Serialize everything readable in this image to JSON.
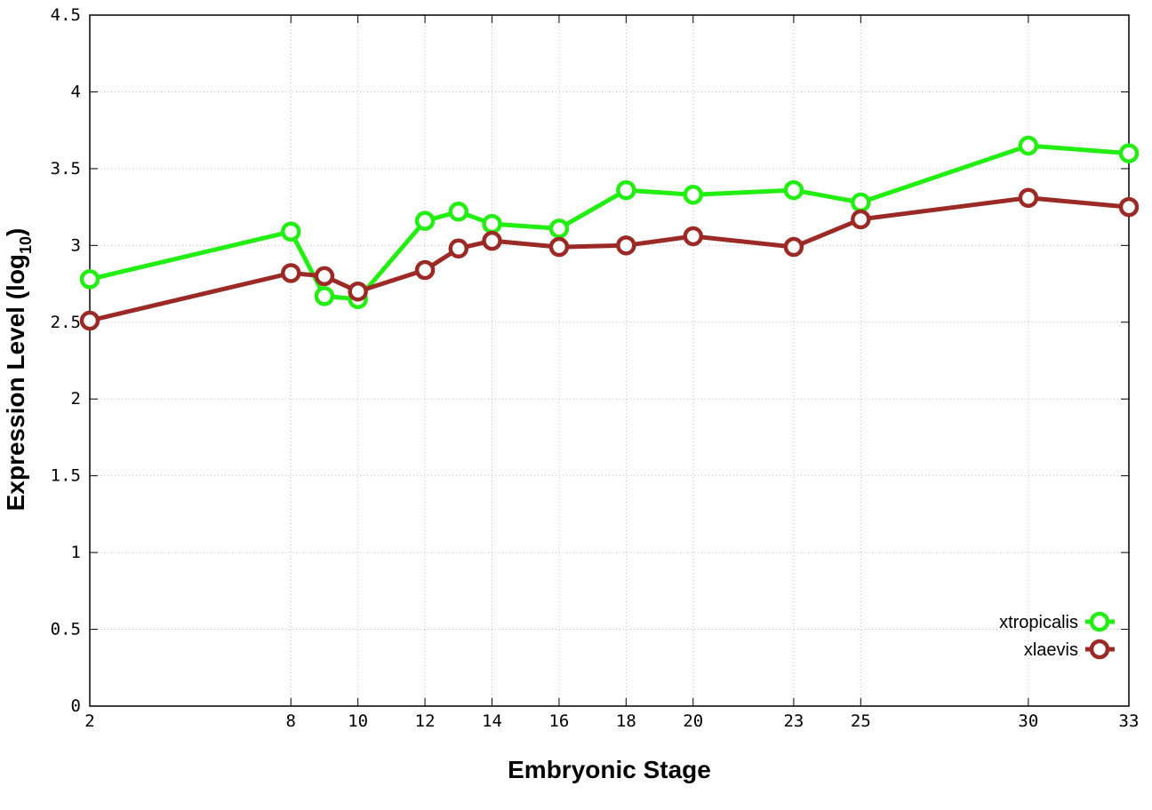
{
  "chart_data": {
    "type": "line",
    "title": "",
    "xlabel": "Embryonic Stage",
    "ylabel_main": "Expression Level (log",
    "ylabel_sub": "10",
    "ylabel_close": ")",
    "x_ticks": [
      2,
      8,
      10,
      12,
      14,
      16,
      18,
      20,
      23,
      25,
      30,
      33
    ],
    "y_ticks": [
      "0",
      "0.5",
      "1",
      "1.5",
      "2",
      "2.5",
      "3",
      "3.5",
      "4",
      "4.5"
    ],
    "xlim": [
      2,
      33
    ],
    "ylim": [
      0,
      4.5
    ],
    "grid": true,
    "legend_position": "bottom-right",
    "x": [
      2,
      8,
      9,
      10,
      12,
      13,
      14,
      16,
      18,
      20,
      23,
      25,
      30,
      33
    ],
    "series": [
      {
        "name": "xtropicalis",
        "color": "#22ee11",
        "values": [
          2.78,
          3.09,
          2.67,
          2.65,
          3.16,
          3.22,
          3.14,
          3.11,
          3.36,
          3.33,
          3.36,
          3.28,
          3.65,
          3.6
        ]
      },
      {
        "name": "xlaevis",
        "color": "#9b2a26",
        "values": [
          2.51,
          2.82,
          2.8,
          2.7,
          2.84,
          2.98,
          3.03,
          2.99,
          3.0,
          3.06,
          2.99,
          3.17,
          3.31,
          3.25
        ]
      }
    ]
  }
}
